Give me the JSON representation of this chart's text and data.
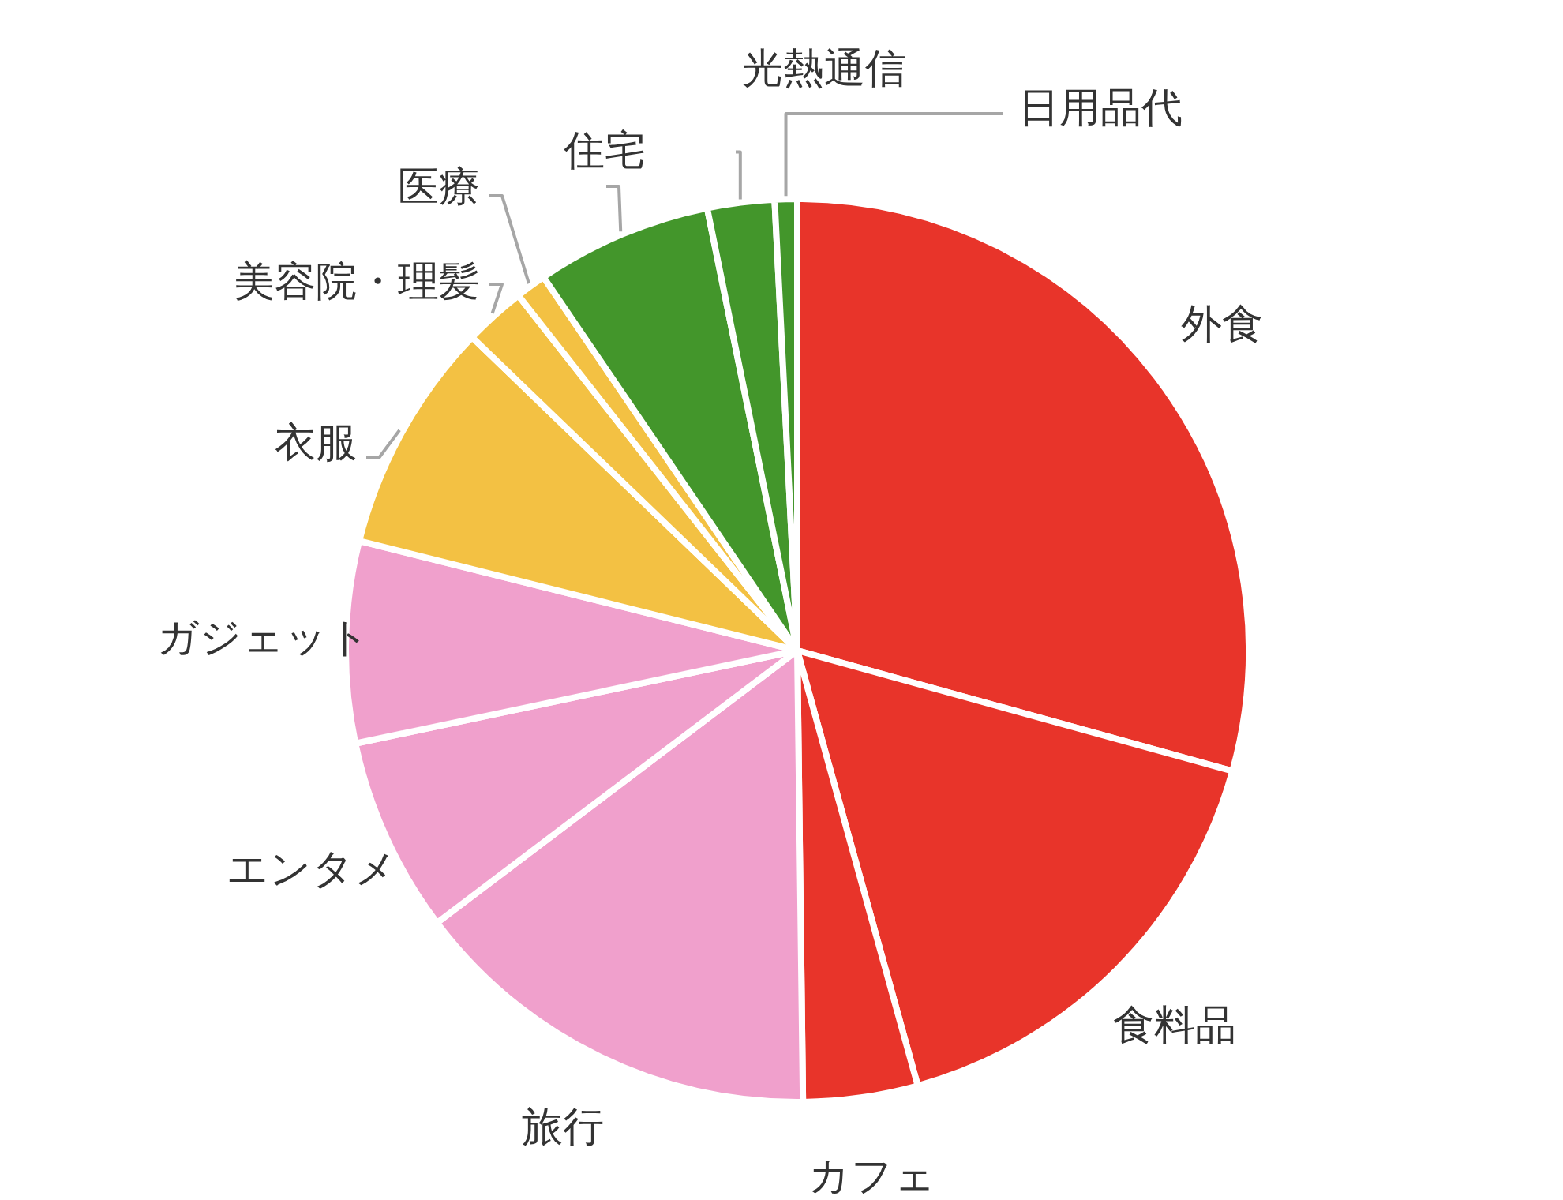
{
  "chart_data": {
    "type": "pie",
    "categories": [
      "外食",
      "食料品",
      "カフェ",
      "旅行",
      "エンタメ",
      "ガジェット",
      "衣服",
      "美容院・理髪",
      "医療",
      "住宅",
      "光熱通信",
      "日用品代"
    ],
    "values": [
      29.3,
      16.4,
      4.1,
      14.9,
      7.0,
      7.2,
      8.3,
      2.2,
      1.1,
      6.3,
      2.4,
      0.8
    ],
    "colors": [
      "#e8342a",
      "#e8342a",
      "#e8342a",
      "#f0a0cc",
      "#f0a0cc",
      "#f0a0cc",
      "#f3c143",
      "#f3c143",
      "#f3c143",
      "#43962b",
      "#43962b",
      "#43962b"
    ],
    "legend": false
  }
}
